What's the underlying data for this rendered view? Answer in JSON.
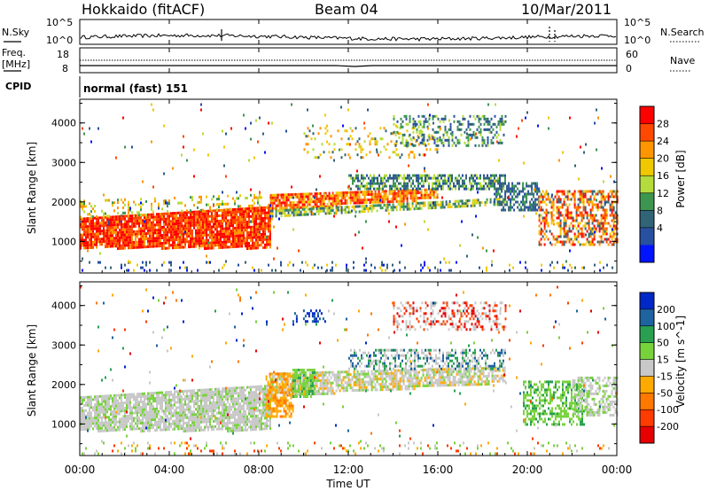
{
  "header": {
    "station": "Hokkaido (fitACF)",
    "beam": "Beam 04",
    "date": "10/Mar/2011"
  },
  "noise_panel": {
    "left_label": "N.Sky",
    "right_label": "N.Search",
    "left_ticks": [
      "10^5",
      "10^0"
    ],
    "right_ticks": [
      "10^5",
      "10^0"
    ]
  },
  "freq_panel": {
    "left_label_1": "Freq.",
    "left_label_2": "[MHz]",
    "right_label": "Nave",
    "left_ticks": [
      "18",
      "8"
    ],
    "right_ticks": [
      "60",
      "0"
    ]
  },
  "cpid_panel": {
    "label": "CPID",
    "value": "normal (fast) 151"
  },
  "chart_data": [
    {
      "type": "heatmap",
      "name": "power",
      "ylabel": "Slant Range [km]",
      "yticks": [
        "4000",
        "3000",
        "2000",
        "1000"
      ],
      "yrange": [
        200,
        4600
      ],
      "colorbar_label": "Power [dB]",
      "colorbar_ticks": [
        "28",
        "24",
        "20",
        "16",
        "12",
        "8",
        "4"
      ],
      "colorbar_colors": [
        "#ff0000",
        "#ff4800",
        "#ff9600",
        "#f0c800",
        "#b4dc3c",
        "#3c9650",
        "#326478",
        "#2850a0",
        "#0014ff"
      ]
    },
    {
      "type": "heatmap",
      "name": "velocity",
      "ylabel": "Slant Range [km]",
      "yticks": [
        "4000",
        "3000",
        "2000",
        "1000"
      ],
      "yrange": [
        200,
        4600
      ],
      "colorbar_label": "Velocity [m s^-1]",
      "colorbar_ticks": [
        "200",
        "100",
        "50",
        "15",
        "-15",
        "-50",
        "-100",
        "-200"
      ],
      "colorbar_colors": [
        "#0028c8",
        "#1e64a0",
        "#28a050",
        "#78d23c",
        "#c8c8c8",
        "#ffaa00",
        "#ff7800",
        "#ff3c00",
        "#e60000"
      ]
    }
  ],
  "xaxis": {
    "label": "Time UT",
    "ticks": [
      "00:00",
      "04:00",
      "08:00",
      "12:00",
      "16:00",
      "20:00",
      "00:00"
    ]
  }
}
